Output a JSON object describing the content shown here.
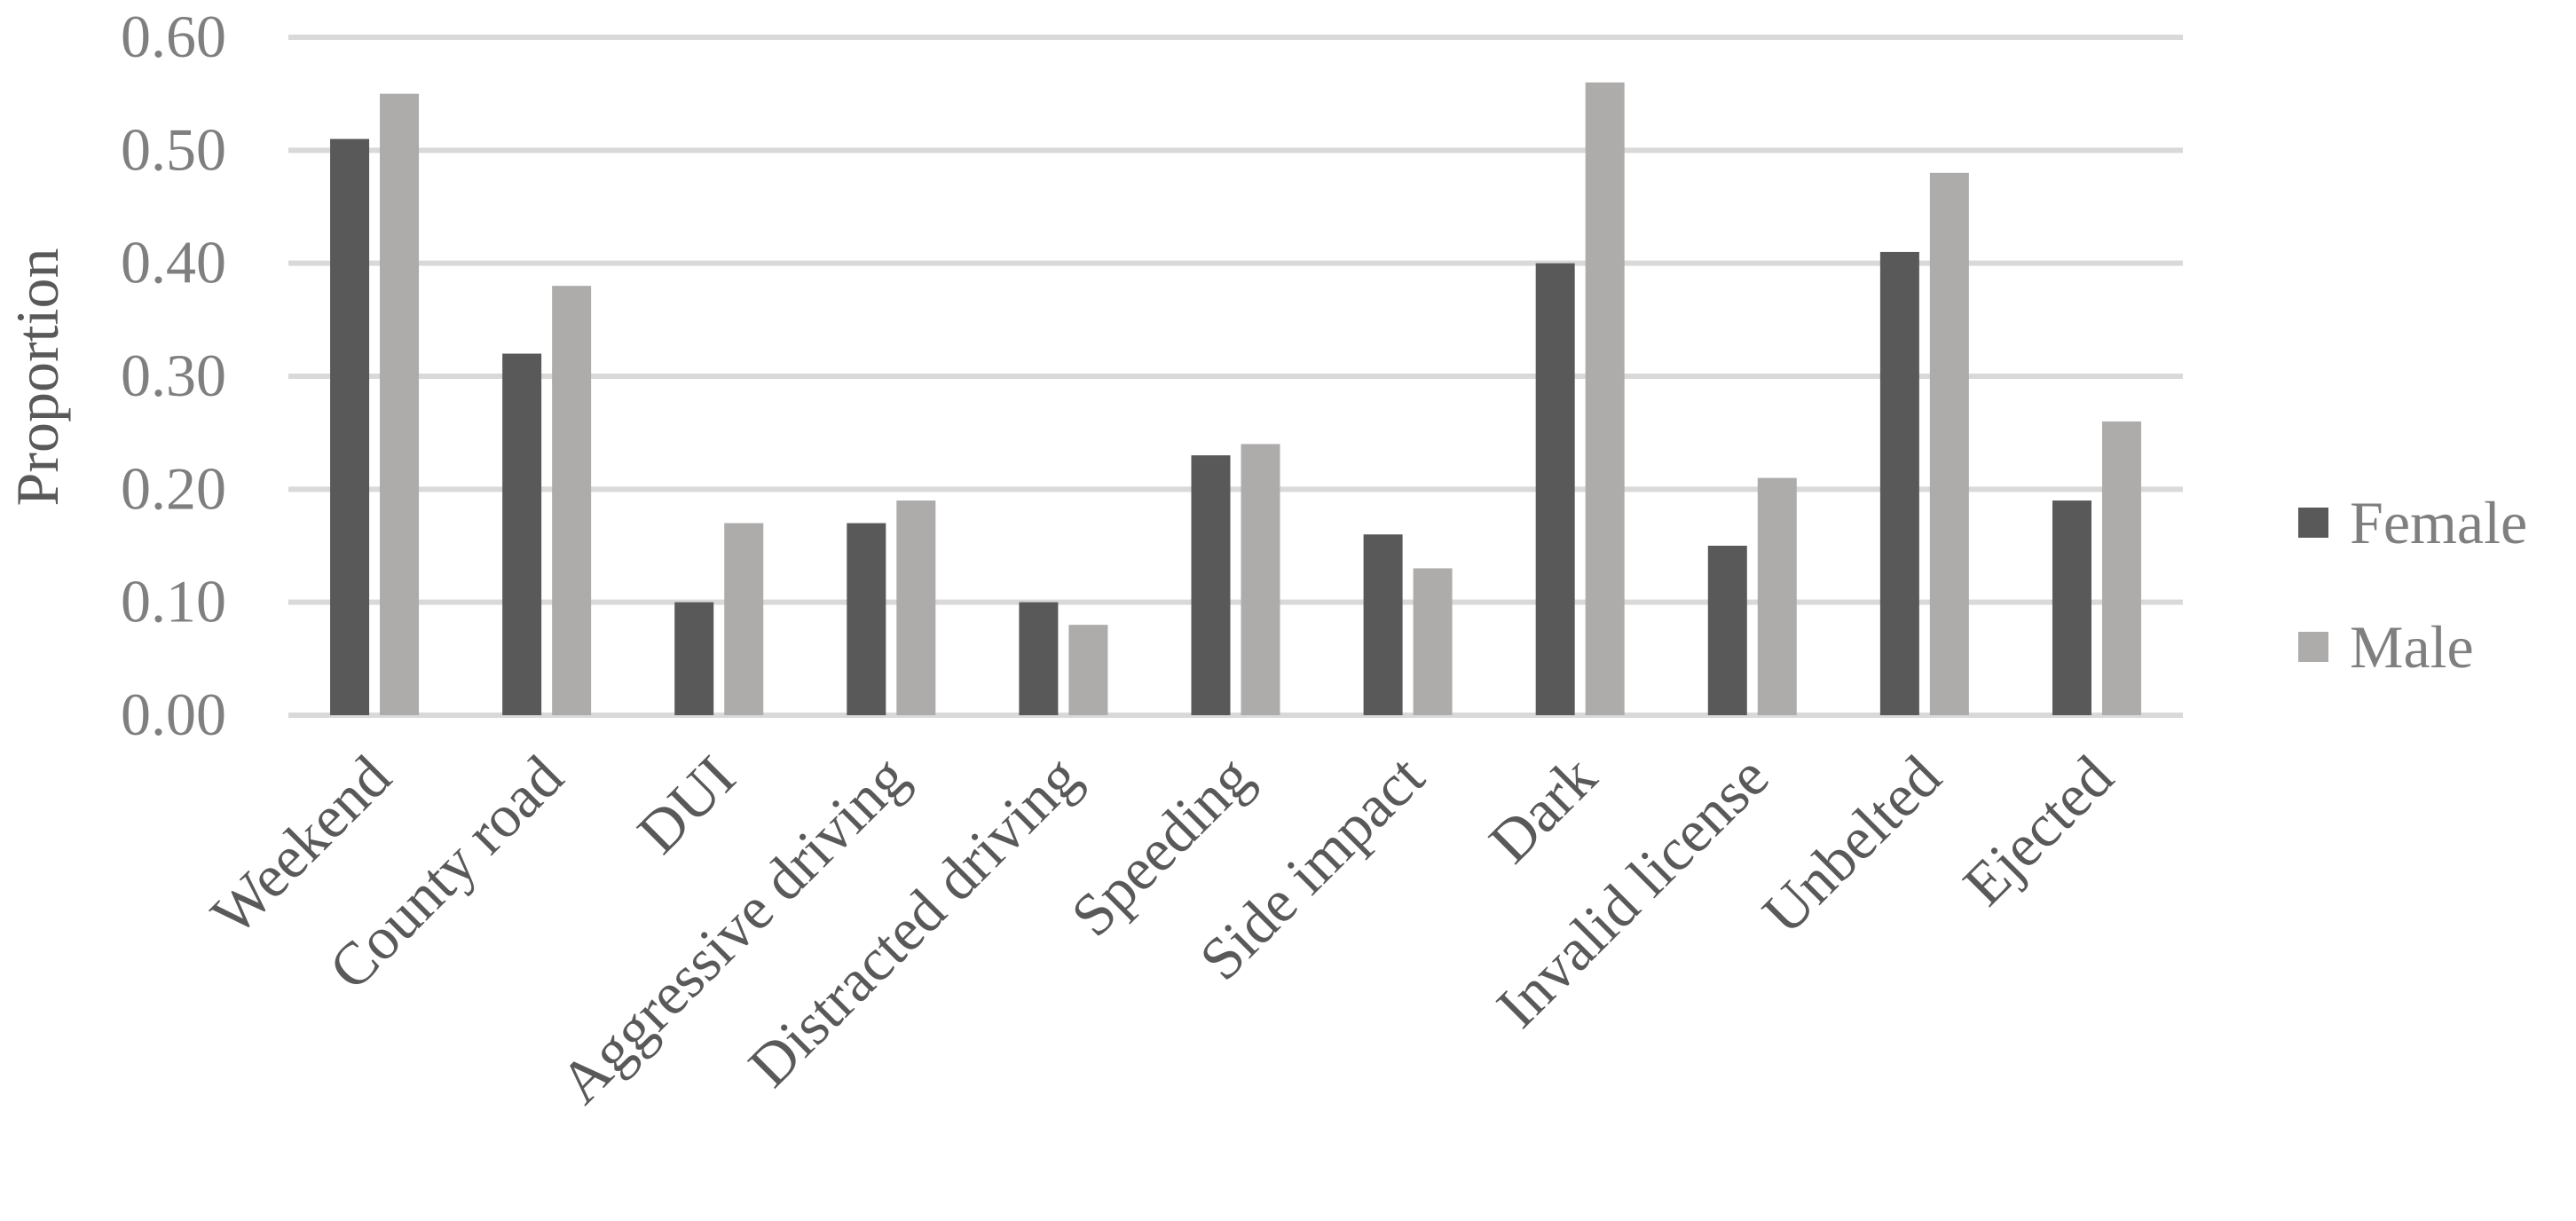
{
  "chart_data": {
    "type": "bar",
    "title": "",
    "xlabel": "",
    "ylabel": "Proportion",
    "ylim": [
      0,
      0.6
    ],
    "yticks": [
      "0.00",
      "0.10",
      "0.20",
      "0.30",
      "0.40",
      "0.50",
      "0.60"
    ],
    "grid": true,
    "legend_position": "right",
    "categories": [
      "Weekend",
      "County road",
      "DUI",
      "Aggressive driving",
      "Distracted driving",
      "Speeding",
      "Side impact",
      "Dark",
      "Invalid license",
      "Unbelted",
      "Ejected"
    ],
    "series": [
      {
        "name": "Female",
        "color": "#595959",
        "values": [
          0.51,
          0.32,
          0.1,
          0.17,
          0.1,
          0.23,
          0.16,
          0.4,
          0.15,
          0.41,
          0.19
        ]
      },
      {
        "name": "Male",
        "color": "#aeabab",
        "values": [
          0.55,
          0.38,
          0.17,
          0.19,
          0.08,
          0.24,
          0.13,
          0.56,
          0.21,
          0.48,
          0.26
        ]
      }
    ]
  }
}
